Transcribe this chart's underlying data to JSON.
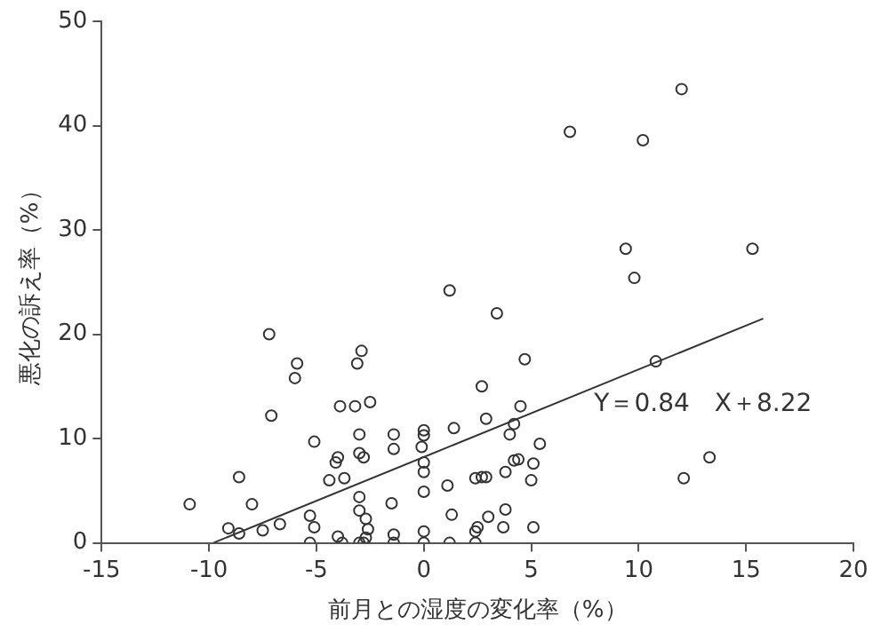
{
  "chart_data": {
    "type": "scatter",
    "xlabel": "前月との湿度の変化率（%）",
    "ylabel": "悪化の訴え率（%）",
    "xlim": [
      -15,
      20
    ],
    "xticks": [
      -15,
      -10,
      -5,
      0,
      5,
      10,
      15,
      20
    ],
    "ylim": [
      0,
      50
    ],
    "yticks": [
      0,
      10,
      20,
      30,
      40,
      50
    ],
    "grid": false,
    "legend": false,
    "marker": "circle",
    "annotations": [
      "Y＝0.84　X＋8.22"
    ],
    "series": [
      {
        "color": "#333333",
        "x": [
          1.2,
          -7.2,
          -2.9,
          -3.1,
          -5.9,
          -6.0,
          2.7,
          -3.9,
          -3.2,
          -2.5,
          -7.1,
          2.9,
          1.4,
          -3.0,
          -1.4,
          0,
          0,
          -5.1,
          -1.4,
          -0.1,
          -3.0,
          -2.8,
          -4.0,
          -4.1,
          0,
          0,
          -4.4,
          -3.7,
          -8.6,
          2.4,
          2.7,
          2.9,
          1.1,
          0,
          -10.9,
          -8.0,
          -1.5,
          -3.0,
          -3.0,
          -5.3,
          -2.7,
          1.3,
          3.0,
          -6.7,
          -5.1,
          -2.6,
          2.5,
          2.4,
          -9.1,
          -8.6,
          -7.5,
          -4.0,
          -2.7,
          -1.4,
          0,
          -5.3,
          -3.8,
          -3.0,
          -2.8,
          -1.4,
          0,
          1.2,
          2.4,
          9.4,
          9.8,
          3.4,
          4.7,
          10.8,
          4.5,
          4.2,
          4.0,
          5.4,
          4.4,
          4.2,
          5.1,
          3.8,
          5.0,
          3.8,
          5.1,
          3.7,
          12.0,
          6.8,
          10.2,
          15.3,
          13.3,
          12.1
        ],
        "values": [
          24.2,
          20.0,
          18.4,
          17.2,
          17.2,
          15.8,
          15.0,
          13.1,
          13.1,
          13.5,
          12.2,
          11.9,
          11.0,
          10.4,
          10.4,
          10.8,
          10.3,
          9.7,
          9.0,
          9.2,
          8.6,
          8.2,
          8.2,
          7.7,
          7.7,
          6.8,
          6.0,
          6.2,
          6.3,
          6.2,
          6.3,
          6.3,
          5.5,
          4.9,
          3.7,
          3.7,
          3.8,
          4.4,
          3.1,
          2.6,
          2.3,
          2.7,
          2.5,
          1.8,
          1.5,
          1.3,
          1.5,
          1.1,
          1.4,
          0.9,
          1.2,
          0.6,
          0.5,
          0.8,
          1.1,
          0,
          0,
          0,
          0,
          0,
          0,
          0,
          0,
          28.2,
          25.4,
          22.0,
          17.6,
          17.4,
          13.1,
          11.4,
          10.4,
          9.5,
          8.0,
          7.9,
          7.6,
          6.8,
          6.0,
          3.2,
          1.5,
          1.5,
          43.5,
          39.4,
          38.6,
          28.2,
          8.2,
          6.2
        ]
      },
      {
        "type": "line",
        "color": "#333333",
        "marker": "none",
        "x": [
          -9.8,
          15.8
        ],
        "values": [
          0,
          21.5
        ]
      }
    ]
  }
}
